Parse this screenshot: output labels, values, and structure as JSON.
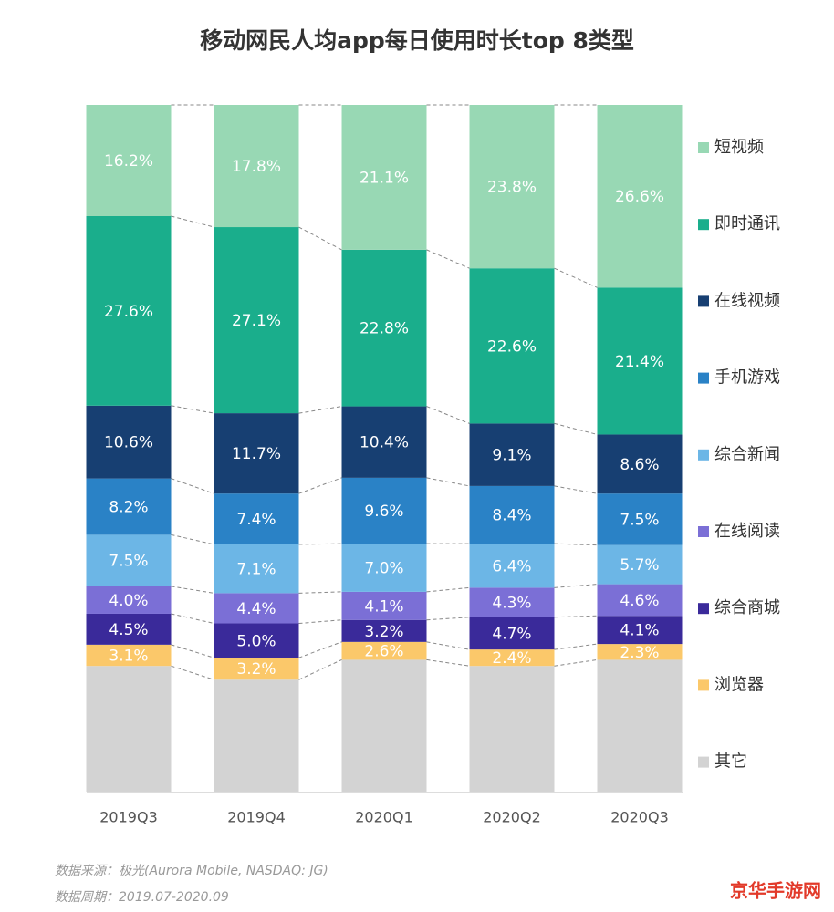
{
  "chart_data": {
    "type": "stacked_bar",
    "title": "移动网民人均app每日使用时长top 8类型",
    "categories": [
      "2019Q3",
      "2019Q4",
      "2020Q1",
      "2020Q2",
      "2020Q3"
    ],
    "ylim": [
      0,
      100
    ],
    "series": [
      {
        "name": "其它",
        "color": "#d3d3d3",
        "values": [
          18.3,
          16.3,
          19.2,
          18.3,
          19.2
        ]
      },
      {
        "name": "浏览器",
        "color": "#fbc86a",
        "values": [
          3.1,
          3.2,
          2.6,
          2.4,
          2.3
        ],
        "value_labels": [
          "3.1%",
          "3.2%",
          "2.6%",
          "2.4%",
          "2.3%"
        ]
      },
      {
        "name": "综合商城",
        "color": "#3a2a9a",
        "values": [
          4.5,
          5.0,
          3.2,
          4.7,
          4.1
        ],
        "value_labels": [
          "4.5%",
          "5.0%",
          "3.2%",
          "4.7%",
          "4.1%"
        ]
      },
      {
        "name": "在线阅读",
        "color": "#7b6fd6",
        "values": [
          4.0,
          4.4,
          4.1,
          4.3,
          4.6
        ],
        "value_labels": [
          "4.0%",
          "4.4%",
          "4.1%",
          "4.3%",
          "4.6%"
        ]
      },
      {
        "name": "综合新闻",
        "color": "#6cb6e6",
        "values": [
          7.5,
          7.1,
          7.0,
          6.4,
          5.7
        ],
        "value_labels": [
          "7.5%",
          "7.1%",
          "7.0%",
          "6.4%",
          "5.7%"
        ]
      },
      {
        "name": "手机游戏",
        "color": "#2a82c6",
        "values": [
          8.2,
          7.4,
          9.6,
          8.4,
          7.5
        ],
        "value_labels": [
          "8.2%",
          "7.4%",
          "9.6%",
          "8.4%",
          "7.5%"
        ]
      },
      {
        "name": "在线视频",
        "color": "#173f72",
        "values": [
          10.6,
          11.7,
          10.4,
          9.1,
          8.6
        ],
        "value_labels": [
          "10.6%",
          "11.7%",
          "10.4%",
          "9.1%",
          "8.6%"
        ]
      },
      {
        "name": "即时通讯",
        "color": "#1aae8c",
        "values": [
          27.6,
          27.1,
          22.8,
          22.6,
          21.4
        ],
        "value_labels": [
          "27.6%",
          "27.1%",
          "22.8%",
          "22.6%",
          "21.4%"
        ]
      },
      {
        "name": "短视频",
        "color": "#98d8b4",
        "values": [
          16.2,
          17.8,
          21.1,
          23.8,
          26.6
        ],
        "value_labels": [
          "16.2%",
          "17.8%",
          "21.1%",
          "23.8%",
          "26.6%"
        ]
      }
    ],
    "source": "数据来源：极光(Aurora Mobile, NASDAQ: JG)",
    "period": "数据周期：2019.07-2020.09",
    "watermark": "京华手游网"
  }
}
